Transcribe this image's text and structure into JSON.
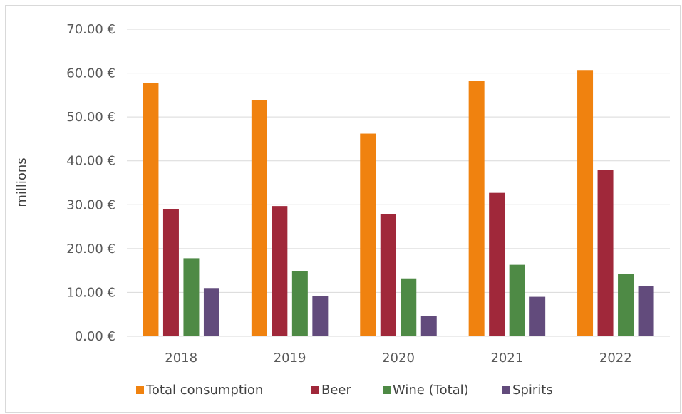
{
  "chart_data": {
    "type": "bar",
    "ylabel": "millions",
    "ylim": [
      0,
      70
    ],
    "y_ticks": [
      "0.00 €",
      "10.00 €",
      "20.00 €",
      "30.00 €",
      "40.00 €",
      "50.00 €",
      "60.00 €",
      "70.00 €"
    ],
    "categories": [
      "2018",
      "2019",
      "2020",
      "2021",
      "2022"
    ],
    "grid": true,
    "legend_position": "bottom",
    "series": [
      {
        "name": "Total consumption",
        "color": "#F0820F",
        "values": [
          57.8,
          53.9,
          46.2,
          58.3,
          60.7
        ]
      },
      {
        "name": "Beer",
        "color": "#A0283A",
        "values": [
          29.0,
          29.7,
          27.9,
          32.7,
          37.9
        ]
      },
      {
        "name": "Wine (Total)",
        "color": "#4E8A45",
        "values": [
          17.8,
          14.8,
          13.2,
          16.3,
          14.2
        ]
      },
      {
        "name": "Spirits",
        "color": "#624B7C",
        "values": [
          11.0,
          9.1,
          4.7,
          9.0,
          11.5
        ]
      }
    ]
  }
}
